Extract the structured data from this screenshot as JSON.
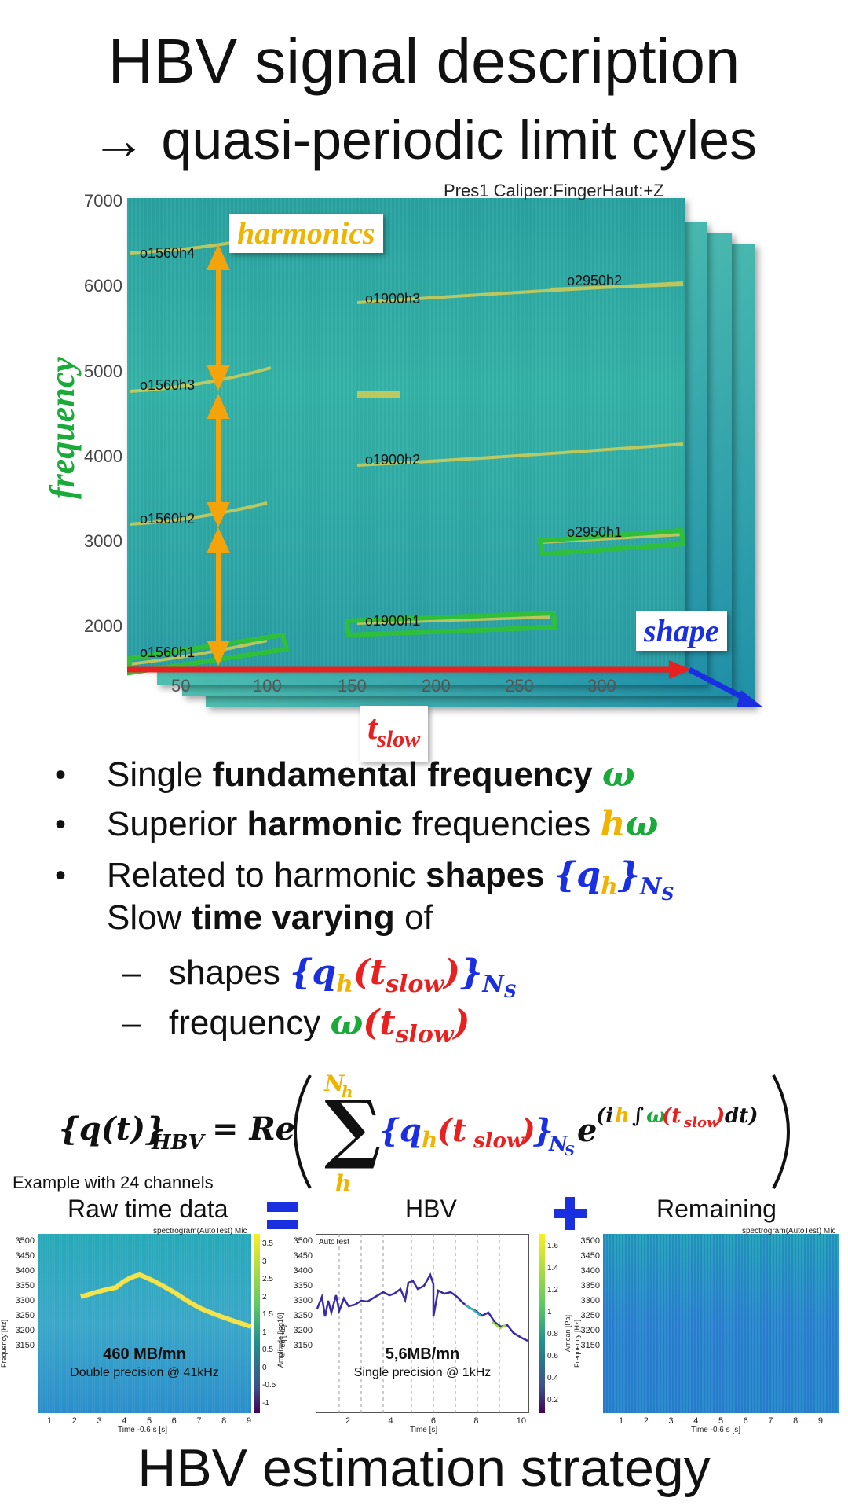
{
  "title": {
    "line1": "HBV signal description",
    "line2": "→ quasi-periodic limit cyles"
  },
  "spectrogram": {
    "fig_title": "Pres1 Caliper:FingerHaut:+Z",
    "y_ticks": [
      "7000",
      "6000",
      "5000",
      "4000",
      "3000",
      "2000"
    ],
    "x_ticks": [
      "50",
      "100",
      "150",
      "200",
      "250",
      "300"
    ],
    "harmonic_labels": {
      "o1560h4": "o1560h4",
      "o1560h3": "o1560h3",
      "o1560h2": "o1560h2",
      "o1560h1": "o1560h1",
      "o1900h3": "o1900h3",
      "o1900h2": "o1900h2",
      "o1900h1": "o1900h1",
      "o2950h2": "o2950h2",
      "o2950h1": "o2950h1"
    },
    "annotations": {
      "harmonics": "harmonics",
      "frequency": "frequency",
      "shape": "shape",
      "t_slow_base": "t",
      "t_slow_sub": "slow"
    },
    "colors": {
      "harmonics": "#f0b400",
      "frequency": "#1aaa3a",
      "shape": "#1a2fe0",
      "t_slow": "#e82020"
    }
  },
  "bullets": {
    "b1_pre": "Single ",
    "b1_bold": "fundamental frequency ",
    "b1_math": "ω",
    "b2_pre": "Superior ",
    "b2_bold": "harmonic",
    "b2_post": " frequencies ",
    "b2_math_h": "h",
    "b2_math_w": "ω",
    "b3_pre": "Related to harmonic ",
    "b3_bold": "shapes ",
    "b3_line2_pre": "Slow ",
    "b3_line2_bold": "time varying",
    "b3_line2_post": " of",
    "sub1": "shapes ",
    "sub2": "frequency ",
    "dash": "–",
    "dot": "•"
  },
  "bottom": {
    "example_caption": "Example with 24 channels",
    "raw_label": "Raw time data",
    "hbv_label": "HBV",
    "remaining_label": "Remaining",
    "eq_symbol": "=",
    "plus_symbol": "+",
    "raw": {
      "fig_title": "spectrogram(AutoTest) Mic",
      "ylabel": "Frequency [Hz]",
      "xlabel": "Time -0.6 s [s]",
      "y_ticks": [
        "3500",
        "3450",
        "3400",
        "3350",
        "3300",
        "3250",
        "3200",
        "3150"
      ],
      "x_ticks": [
        "1",
        "2",
        "3",
        "4",
        "5",
        "6",
        "7",
        "8",
        "9"
      ],
      "cbar_label": "Amplitude [log10]",
      "cbar_ticks": [
        "3.5",
        "3",
        "2.5",
        "2",
        "1.5",
        "1",
        "0.5",
        "0",
        "-0.5",
        "-1"
      ],
      "size_bold": "460 MB/mn",
      "size_text": "Double precision @ 41kHz"
    },
    "hbv": {
      "fig_title": "AutoTest",
      "ylabel": "iFreq [Hz]",
      "xlabel": "Time [s]",
      "y_ticks": [
        "3500",
        "3450",
        "3400",
        "3350",
        "3300",
        "3250",
        "3200",
        "3150"
      ],
      "x_ticks": [
        "2",
        "4",
        "6",
        "8",
        "10"
      ],
      "cbar_label": "Amean [Pa]",
      "cbar_ticks": [
        "1.6",
        "1.4",
        "1.2",
        "1",
        "0.8",
        "0.6",
        "0.4",
        "0.2"
      ],
      "size_bold": "5,6MB/mn",
      "size_text": "Single precision @ 1kHz"
    },
    "remaining": {
      "fig_title": "spectrogram(AutoTest) Mic",
      "ylabel": "Frequency [Hz]",
      "xlabel": "Time -0.6 s [s]",
      "y_ticks": [
        "3500",
        "3450",
        "3400",
        "3350",
        "3300",
        "3250",
        "3200",
        "3150"
      ],
      "x_ticks": [
        "1",
        "2",
        "3",
        "4",
        "5",
        "6",
        "7",
        "8",
        "9"
      ]
    }
  },
  "footer_title": "HBV estimation strategy"
}
